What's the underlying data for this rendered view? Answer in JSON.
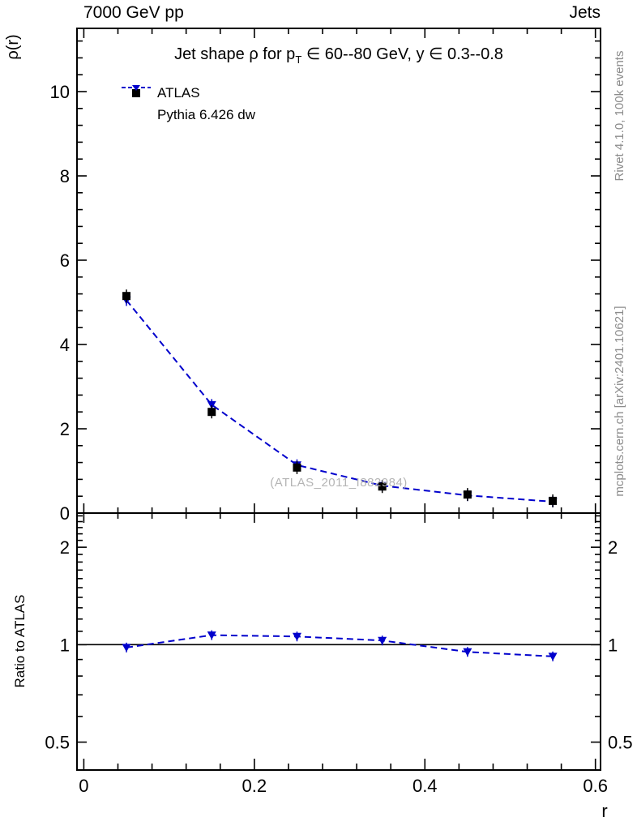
{
  "header": {
    "left_label": "7000 GeV pp",
    "right_label": "Jets"
  },
  "title": {
    "part1": "Jet shape ρ for p",
    "sub": "T",
    "part2": " ∈ 60--80 GeV,  y ∈ 0.3--0.8"
  },
  "watermark": "(ATLAS_2011_I882984)",
  "side_notes": {
    "rivet": "Rivet 4.1.0,  100k events",
    "mcplots": "mcplots.cern.ch [arXiv:2401.10621]"
  },
  "axis_labels": {
    "x": "r",
    "y_main": "ρ(r)",
    "y_ratio": "Ratio to ATLAS"
  },
  "colors": {
    "atlas": "#000000",
    "pythia": "#0000cc",
    "frame": "#000000",
    "gray_note": "#8c8c8c"
  },
  "chart_data": [
    {
      "id": "main",
      "type": "line",
      "title": "Jet shape rho for pT in 60--80 GeV, y in 0.3--0.8",
      "xlabel": "r",
      "ylabel": "rho(r)",
      "xlim": [
        -0.008,
        0.606
      ],
      "ylim": [
        0,
        11.5
      ],
      "xticks": [
        0,
        0.2,
        0.4,
        0.6
      ],
      "yticks": [
        0,
        2,
        4,
        6,
        8,
        10
      ],
      "grid": false,
      "legend_position": "upper-left",
      "x": [
        0.05,
        0.15,
        0.25,
        0.35,
        0.45,
        0.55
      ],
      "series": [
        {
          "name": "ATLAS",
          "marker": "square",
          "color": "#000000",
          "linestyle": "none",
          "values": [
            5.15,
            2.4,
            1.08,
            0.63,
            0.44,
            0.29
          ]
        },
        {
          "name": "Pythia 6.426 dw",
          "marker": "triangle-down",
          "color": "#0000cc",
          "linestyle": "dashed",
          "values": [
            5.05,
            2.57,
            1.14,
            0.65,
            0.42,
            0.27
          ]
        }
      ]
    },
    {
      "id": "ratio",
      "type": "line",
      "ylabel": "Ratio to ATLAS",
      "yscale": "log",
      "ylim": [
        0.41,
        2.55
      ],
      "yticks": [
        0.5,
        1,
        2
      ],
      "reference_line": 1,
      "x": [
        0.05,
        0.15,
        0.25,
        0.35,
        0.45,
        0.55
      ],
      "series": [
        {
          "name": "Pythia 6.426 dw",
          "marker": "triangle-down",
          "color": "#0000cc",
          "linestyle": "dashed",
          "values": [
            0.98,
            1.07,
            1.06,
            1.03,
            0.95,
            0.92
          ]
        }
      ]
    }
  ]
}
